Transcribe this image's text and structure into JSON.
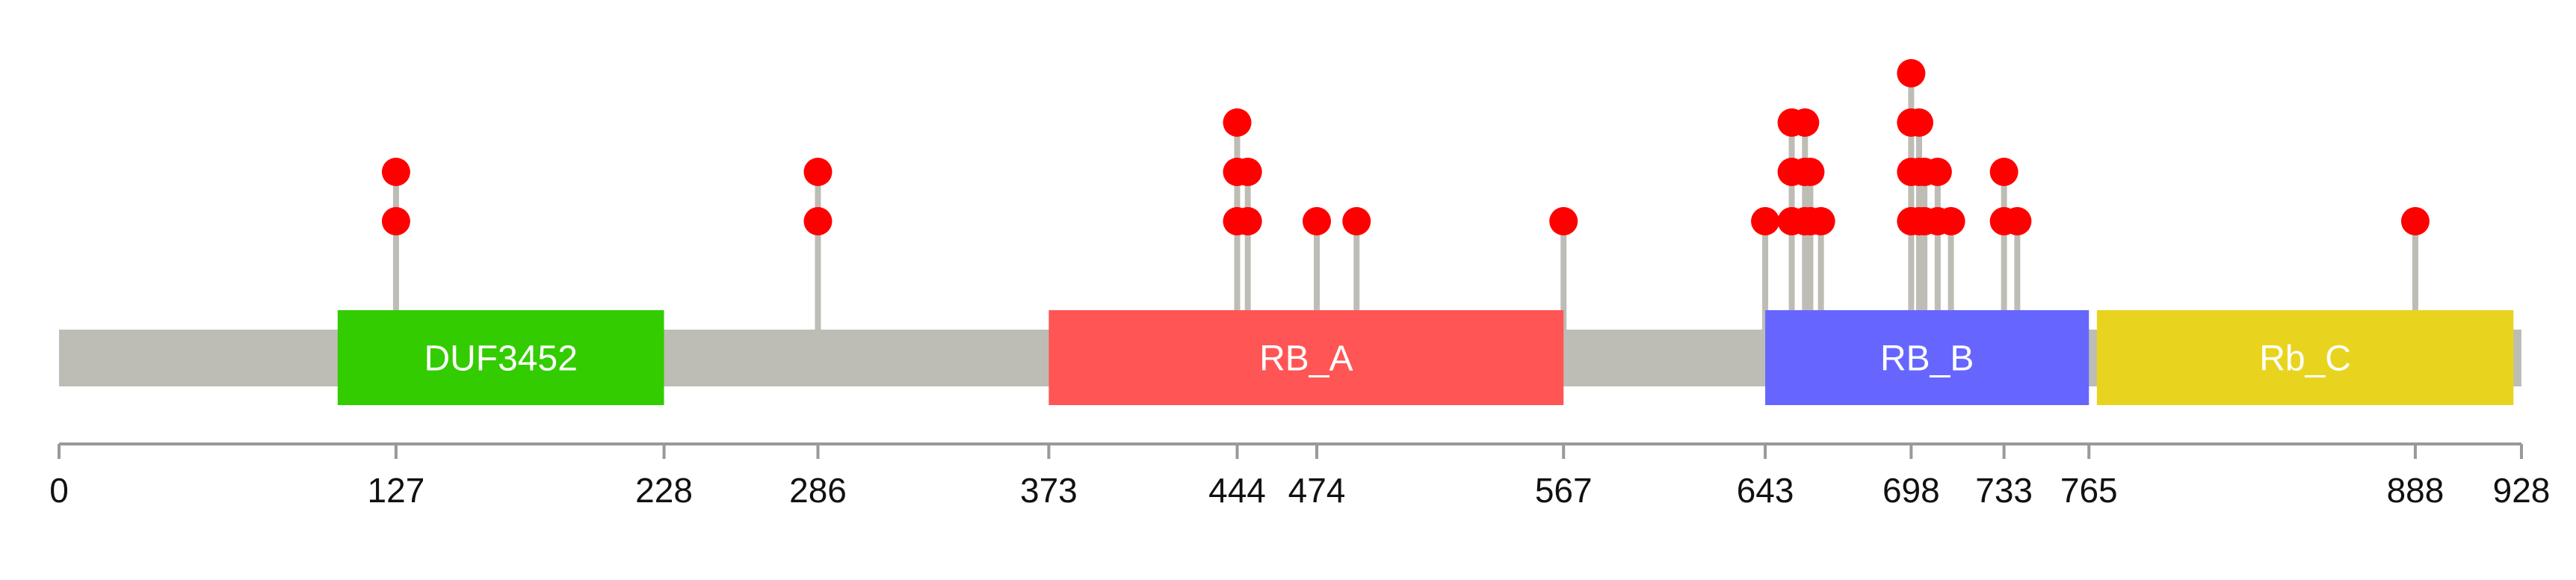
{
  "chart_data": {
    "type": "lollipop",
    "protein_length": 928,
    "xlim": [
      0,
      928
    ],
    "backbone_color": "#bdbdb5",
    "stem_color": "#bdbdb5",
    "marker_color": "#ff0000",
    "axis_color": "#999999",
    "domains": [
      {
        "label": "DUF3452",
        "start": 105,
        "end": 228,
        "color": "#33cc00"
      },
      {
        "label": "RB_A",
        "start": 373,
        "end": 567,
        "color": "#ff5555"
      },
      {
        "label": "RB_B",
        "start": 643,
        "end": 765,
        "color": "#6666ff"
      },
      {
        "label": "Rb_C",
        "start": 768,
        "end": 925,
        "color": "#e8d41f"
      }
    ],
    "tick_labels": [
      {
        "value": 0,
        "text": "0"
      },
      {
        "value": 127,
        "text": "127"
      },
      {
        "value": 228,
        "text": "228"
      },
      {
        "value": 286,
        "text": "286"
      },
      {
        "value": 373,
        "text": "373"
      },
      {
        "value": 444,
        "text": "444"
      },
      {
        "value": 474,
        "text": "474"
      },
      {
        "value": 567,
        "text": "567"
      },
      {
        "value": 643,
        "text": "643"
      },
      {
        "value": 698,
        "text": "698"
      },
      {
        "value": 733,
        "text": "733"
      },
      {
        "value": 765,
        "text": "765"
      },
      {
        "value": 888,
        "text": "888"
      },
      {
        "value": 928,
        "text": "928"
      }
    ],
    "mutations": [
      {
        "position": 127,
        "count": 2
      },
      {
        "position": 286,
        "count": 2
      },
      {
        "position": 444,
        "count": 3
      },
      {
        "position": 448,
        "count": 2
      },
      {
        "position": 474,
        "count": 1
      },
      {
        "position": 489,
        "count": 1
      },
      {
        "position": 567,
        "count": 1
      },
      {
        "position": 643,
        "count": 1
      },
      {
        "position": 653,
        "count": 3
      },
      {
        "position": 658,
        "count": 3
      },
      {
        "position": 660,
        "count": 2
      },
      {
        "position": 664,
        "count": 1
      },
      {
        "position": 698,
        "count": 4
      },
      {
        "position": 701,
        "count": 3
      },
      {
        "position": 703,
        "count": 2
      },
      {
        "position": 708,
        "count": 2
      },
      {
        "position": 713,
        "count": 1
      },
      {
        "position": 733,
        "count": 2
      },
      {
        "position": 738,
        "count": 1
      },
      {
        "position": 888,
        "count": 1
      }
    ]
  }
}
